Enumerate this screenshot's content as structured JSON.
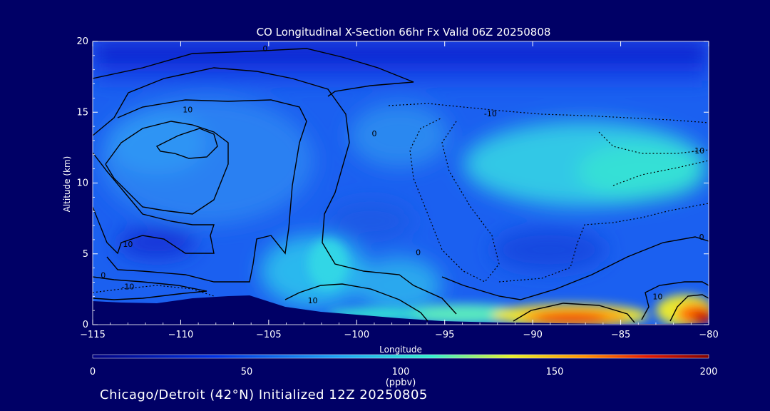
{
  "chart_data": {
    "type": "heatmap",
    "title": "CO Longitudinal X-Section 66hr  Fx Valid 06Z 20250808",
    "xlabel": "Longitude",
    "ylabel": "Altitude (km)",
    "xlim": [
      -115,
      -80
    ],
    "ylim": [
      0,
      20
    ],
    "x_ticks": [
      -115,
      -110,
      -105,
      -100,
      -95,
      -90,
      -85,
      -80
    ],
    "x_tick_labels": [
      "−115",
      "−110",
      "−105",
      "−100",
      "−95",
      "−90",
      "−85",
      "−80"
    ],
    "y_ticks": [
      0,
      5,
      10,
      15,
      20
    ],
    "colorbar": {
      "range": [
        0,
        200
      ],
      "ticks": [
        0,
        50,
        100,
        150,
        200
      ],
      "units": "(ppbv)"
    },
    "contour_labels": [
      {
        "text": "0",
        "lon": -105.2,
        "alt": 19.3
      },
      {
        "text": "10",
        "lon": -109.6,
        "alt": 15.0
      },
      {
        "text": "0",
        "lon": -99.0,
        "alt": 13.3
      },
      {
        "text": "-10",
        "lon": -92.4,
        "alt": 14.7
      },
      {
        "text": "-10",
        "lon": -80.6,
        "alt": 12.1
      },
      {
        "text": "10",
        "lon": -113.0,
        "alt": 5.5
      },
      {
        "text": "0",
        "lon": -114.4,
        "alt": 3.3
      },
      {
        "text": "-10",
        "lon": -113.0,
        "alt": 2.5
      },
      {
        "text": "10",
        "lon": -102.5,
        "alt": 1.5
      },
      {
        "text": "0",
        "lon": -96.5,
        "alt": 4.9
      },
      {
        "text": "10",
        "lon": -82.9,
        "alt": 1.8
      },
      {
        "text": "0",
        "lon": -80.4,
        "alt": 6.0
      }
    ]
  },
  "footer": {
    "initialized": "Chicago/Detroit (42°N) Initialized 12Z 20250805"
  },
  "colors": {
    "background": "#000066",
    "colormap": [
      "#0a0a8c",
      "#1e3ce0",
      "#2a9af2",
      "#30e8d0",
      "#f2f224",
      "#ff8800",
      "#cc0000",
      "#7a0000"
    ]
  }
}
